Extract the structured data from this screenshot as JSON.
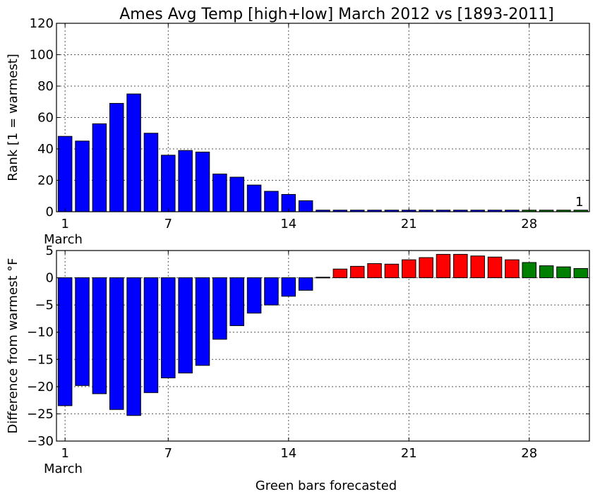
{
  "chart_data": {
    "title": "Ames Avg Temp [high+low] March 2012 vs [1893-2011]",
    "xlabel": "Green bars forecasted",
    "month_label": "March",
    "x_ticks": [
      1,
      7,
      14,
      21,
      28
    ],
    "x_range": [
      0.5,
      31.5
    ],
    "colors": {
      "observed_low": "#0000ff",
      "observed_high": "#ff0000",
      "forecast": "#008000"
    },
    "panels": [
      {
        "type": "bar",
        "ylabel": "Rank [1 = warmest]",
        "ylim": [
          0,
          120
        ],
        "y_ticks": [
          0,
          20,
          40,
          60,
          80,
          100,
          120
        ],
        "annotation": {
          "text": "1",
          "day": 31,
          "value": 1
        },
        "bars": [
          {
            "day": 1,
            "value": 48,
            "color": "#0000ff"
          },
          {
            "day": 2,
            "value": 45,
            "color": "#0000ff"
          },
          {
            "day": 3,
            "value": 56,
            "color": "#0000ff"
          },
          {
            "day": 4,
            "value": 69,
            "color": "#0000ff"
          },
          {
            "day": 5,
            "value": 75,
            "color": "#0000ff"
          },
          {
            "day": 6,
            "value": 50,
            "color": "#0000ff"
          },
          {
            "day": 7,
            "value": 36,
            "color": "#0000ff"
          },
          {
            "day": 8,
            "value": 39,
            "color": "#0000ff"
          },
          {
            "day": 9,
            "value": 38,
            "color": "#0000ff"
          },
          {
            "day": 10,
            "value": 24,
            "color": "#0000ff"
          },
          {
            "day": 11,
            "value": 22,
            "color": "#0000ff"
          },
          {
            "day": 12,
            "value": 17,
            "color": "#0000ff"
          },
          {
            "day": 13,
            "value": 13,
            "color": "#0000ff"
          },
          {
            "day": 14,
            "value": 11,
            "color": "#0000ff"
          },
          {
            "day": 15,
            "value": 7,
            "color": "#0000ff"
          },
          {
            "day": 16,
            "value": 1,
            "color": "#0000ff"
          },
          {
            "day": 17,
            "value": 1,
            "color": "#0000ff"
          },
          {
            "day": 18,
            "value": 1,
            "color": "#0000ff"
          },
          {
            "day": 19,
            "value": 1,
            "color": "#0000ff"
          },
          {
            "day": 20,
            "value": 1,
            "color": "#0000ff"
          },
          {
            "day": 21,
            "value": 1,
            "color": "#0000ff"
          },
          {
            "day": 22,
            "value": 1,
            "color": "#0000ff"
          },
          {
            "day": 23,
            "value": 1,
            "color": "#0000ff"
          },
          {
            "day": 24,
            "value": 1,
            "color": "#0000ff"
          },
          {
            "day": 25,
            "value": 1,
            "color": "#0000ff"
          },
          {
            "day": 26,
            "value": 1,
            "color": "#0000ff"
          },
          {
            "day": 27,
            "value": 1,
            "color": "#0000ff"
          },
          {
            "day": 28,
            "value": 1,
            "color": "#008000"
          },
          {
            "day": 29,
            "value": 1,
            "color": "#008000"
          },
          {
            "day": 30,
            "value": 1,
            "color": "#008000"
          },
          {
            "day": 31,
            "value": 1,
            "color": "#008000"
          }
        ]
      },
      {
        "type": "bar",
        "ylabel": "Difference from warmest °F",
        "ylim": [
          -30,
          5
        ],
        "y_ticks": [
          -30,
          -25,
          -20,
          -15,
          -10,
          -5,
          0,
          5
        ],
        "bars": [
          {
            "day": 1,
            "value": -23.5,
            "color": "#0000ff"
          },
          {
            "day": 2,
            "value": -19.8,
            "color": "#0000ff"
          },
          {
            "day": 3,
            "value": -21.3,
            "color": "#0000ff"
          },
          {
            "day": 4,
            "value": -24.2,
            "color": "#0000ff"
          },
          {
            "day": 5,
            "value": -25.3,
            "color": "#0000ff"
          },
          {
            "day": 6,
            "value": -21.1,
            "color": "#0000ff"
          },
          {
            "day": 7,
            "value": -18.4,
            "color": "#0000ff"
          },
          {
            "day": 8,
            "value": -17.5,
            "color": "#0000ff"
          },
          {
            "day": 9,
            "value": -16.1,
            "color": "#0000ff"
          },
          {
            "day": 10,
            "value": -11.3,
            "color": "#0000ff"
          },
          {
            "day": 11,
            "value": -8.8,
            "color": "#0000ff"
          },
          {
            "day": 12,
            "value": -6.5,
            "color": "#0000ff"
          },
          {
            "day": 13,
            "value": -5.0,
            "color": "#0000ff"
          },
          {
            "day": 14,
            "value": -3.4,
            "color": "#0000ff"
          },
          {
            "day": 15,
            "value": -2.3,
            "color": "#0000ff"
          },
          {
            "day": 16,
            "value": 0.1,
            "color": "#0000ff"
          },
          {
            "day": 17,
            "value": 1.6,
            "color": "#ff0000"
          },
          {
            "day": 18,
            "value": 2.1,
            "color": "#ff0000"
          },
          {
            "day": 19,
            "value": 2.6,
            "color": "#ff0000"
          },
          {
            "day": 20,
            "value": 2.5,
            "color": "#ff0000"
          },
          {
            "day": 21,
            "value": 3.3,
            "color": "#ff0000"
          },
          {
            "day": 22,
            "value": 3.7,
            "color": "#ff0000"
          },
          {
            "day": 23,
            "value": 4.3,
            "color": "#ff0000"
          },
          {
            "day": 24,
            "value": 4.3,
            "color": "#ff0000"
          },
          {
            "day": 25,
            "value": 4.0,
            "color": "#ff0000"
          },
          {
            "day": 26,
            "value": 3.8,
            "color": "#ff0000"
          },
          {
            "day": 27,
            "value": 3.3,
            "color": "#ff0000"
          },
          {
            "day": 28,
            "value": 2.8,
            "color": "#008000"
          },
          {
            "day": 29,
            "value": 2.2,
            "color": "#008000"
          },
          {
            "day": 30,
            "value": 2.0,
            "color": "#008000"
          },
          {
            "day": 31,
            "value": 1.7,
            "color": "#008000"
          }
        ]
      }
    ]
  }
}
